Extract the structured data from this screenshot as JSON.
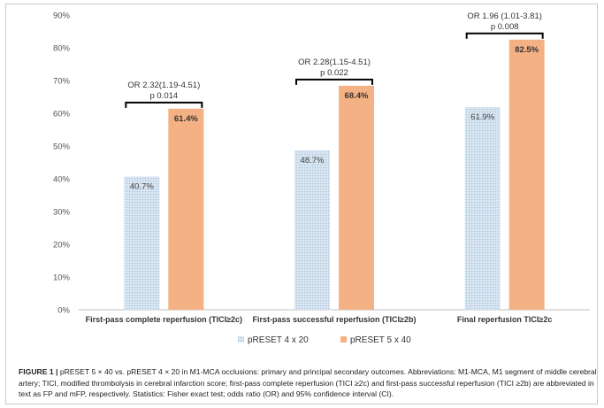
{
  "chart_data": {
    "type": "bar",
    "categories": [
      "First-pass complete reperfusion (TICI≥2c)",
      "First-pass successful reperfusion (TICI≥2b)",
      "Final reperfusion TICI≥2c"
    ],
    "series": [
      {
        "name": "pRESET 4 x 20",
        "values": [
          40.7,
          48.7,
          61.9
        ],
        "labels": [
          "40.7%",
          "48.7%",
          "61.9%"
        ],
        "color": "#c5d9ea",
        "pattern": "dotted"
      },
      {
        "name": "pRESET 5 x 40",
        "values": [
          61.4,
          68.4,
          82.5
        ],
        "labels": [
          "61.4%",
          "68.4%",
          "82.5%"
        ],
        "color": "#f4b183",
        "pattern": "solid"
      }
    ],
    "ylim": [
      0,
      90
    ],
    "yticks": [
      "0%",
      "10%",
      "20%",
      "30%",
      "40%",
      "50%",
      "60%",
      "70%",
      "80%",
      "90%"
    ],
    "grid": false,
    "legend_position": "bottom",
    "annotations": [
      {
        "or_text": "OR 2.32(1.19-4.51)",
        "p_text": "p 0.014"
      },
      {
        "or_text": "OR 2.28(1.15-4.51)",
        "p_text": "p 0.022"
      },
      {
        "or_text": "OR 1.96 (1.01-3.81)",
        "p_text": "p 0.008"
      }
    ]
  },
  "caption": {
    "label": "FIGURE 1 |",
    "text": " pRESET 5 × 40 vs. pRESET 4 × 20 in M1-MCA occlusions: primary and principal secondary outcomes. Abbreviations: M1-MCA, M1 segment of middle cerebral artery; TICI, modified thrombolysis in cerebral infarction score; first-pass complete reperfusion (TICI ≥2c) and first-pass successful reperfusion (TICI ≥2b) are abbreviated in text as FP and mFP, respectively. Statistics: Fisher exact test; odds ratio (OR) and 95% confidence interval (CI)."
  }
}
